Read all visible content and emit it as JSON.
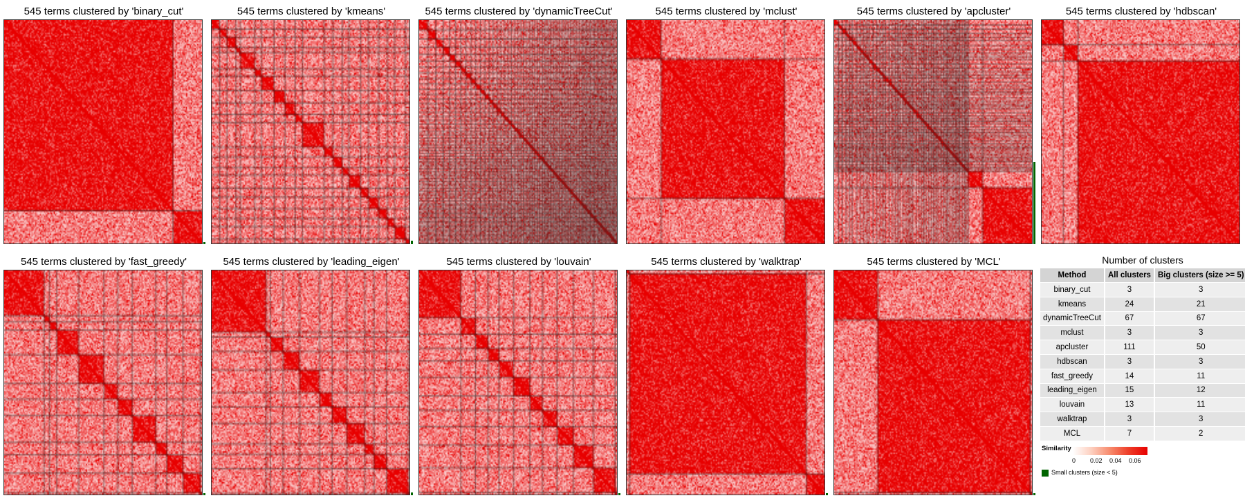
{
  "panel_title_suffix": "",
  "chart_data": [
    {
      "type": "heatmap",
      "title": "545 terms clustered by 'binary_cut'",
      "n_terms": 545,
      "method": "binary_cut",
      "cluster_sizes": [
        465,
        80
      ],
      "small_clusters": true,
      "small_size": 3
    },
    {
      "type": "heatmap",
      "title": "545 terms clustered by 'kmeans'",
      "n_terms": 545,
      "method": "kmeans",
      "cluster_sizes": [
        22,
        20,
        25,
        12,
        40,
        18,
        35,
        30,
        28,
        20,
        60,
        24,
        26,
        18,
        32,
        22,
        28,
        24,
        20,
        30,
        12,
        11,
        4,
        4
      ],
      "small_clusters": true,
      "small_size": 8
    },
    {
      "type": "heatmap",
      "title": "545 terms clustered by 'dynamicTreeCut'",
      "n_terms": 545,
      "method": "dynamicTreeCut",
      "cluster_sizes": [
        24,
        22,
        20,
        18,
        16,
        15,
        14,
        14,
        13,
        13,
        12,
        12,
        11,
        11,
        10,
        10,
        10,
        9,
        9,
        9,
        8,
        8,
        8,
        8,
        7,
        7,
        7,
        7,
        7,
        6,
        6,
        6,
        6,
        6,
        6,
        6,
        6,
        6,
        6,
        6,
        6,
        6,
        6,
        6,
        6,
        6,
        6,
        5,
        5,
        5,
        5,
        5,
        5,
        5,
        5,
        5,
        5,
        5,
        5,
        5,
        5,
        5,
        5,
        5,
        5,
        5,
        6
      ],
      "small_clusters": false,
      "small_size": 0
    },
    {
      "type": "heatmap",
      "title": "545 terms clustered by 'mclust'",
      "n_terms": 545,
      "method": "mclust",
      "cluster_sizes": [
        95,
        340,
        110
      ],
      "small_clusters": false,
      "small_size": 0
    },
    {
      "type": "heatmap",
      "title": "545 terms clustered by 'apcluster'",
      "n_terms": 545,
      "method": "apcluster",
      "cluster_sizes": [
        12,
        10,
        11,
        9,
        8,
        12,
        10,
        9,
        8,
        7,
        11,
        10,
        9,
        8,
        7,
        10,
        9,
        8,
        7,
        6,
        9,
        8,
        7,
        6,
        6,
        9,
        8,
        7,
        6,
        6,
        8,
        7,
        6,
        6,
        6,
        8,
        7,
        6,
        5,
        5,
        7,
        6,
        6,
        5,
        5,
        7,
        6,
        5,
        5,
        40,
        30
      ],
      "small_clusters": true,
      "small_size": 200
    },
    {
      "type": "heatmap",
      "title": "545 terms clustered by 'hdbscan'",
      "n_terms": 545,
      "method": "hdbscan",
      "cluster_sizes": [
        60,
        40,
        445
      ],
      "small_clusters": false,
      "small_size": 0
    },
    {
      "type": "heatmap",
      "title": "545 terms clustered by 'fast_greedy'",
      "n_terms": 545,
      "method": "fast_greedy",
      "cluster_sizes": [
        110,
        15,
        20,
        60,
        70,
        38,
        40,
        65,
        30,
        45,
        48,
        4
      ],
      "small_clusters": true,
      "small_size": 4
    },
    {
      "type": "heatmap",
      "title": "545 terms clustered by 'leading_eigen'",
      "n_terms": 545,
      "method": "leading_eigen",
      "cluster_sizes": [
        150,
        12,
        35,
        45,
        55,
        35,
        40,
        50,
        25,
        35,
        60,
        3
      ],
      "small_clusters": true,
      "small_size": 6
    },
    {
      "type": "heatmap",
      "title": "545 terms clustered by 'louvain'",
      "n_terms": 545,
      "method": "louvain",
      "cluster_sizes": [
        115,
        40,
        35,
        30,
        40,
        45,
        35,
        40,
        45,
        55,
        60,
        5
      ],
      "small_clusters": true,
      "small_size": 5
    },
    {
      "type": "heatmap",
      "title": "545 terms clustered by 'walktrap'",
      "n_terms": 545,
      "method": "walktrap",
      "cluster_sizes": [
        8,
        487,
        50
      ],
      "small_clusters": true,
      "small_size": 3
    },
    {
      "type": "heatmap",
      "title": "545 terms clustered by 'MCL'",
      "n_terms": 545,
      "method": "MCL",
      "cluster_sizes": [
        120,
        420,
        5
      ],
      "small_clusters": true,
      "small_size": 5
    }
  ],
  "table": {
    "title": "Number of clusters",
    "headers": [
      "Method",
      "All clusters",
      "Big clusters (size >= 5)"
    ],
    "rows": [
      [
        "binary_cut",
        "3",
        "3"
      ],
      [
        "kmeans",
        "24",
        "21"
      ],
      [
        "dynamicTreeCut",
        "67",
        "67"
      ],
      [
        "mclust",
        "3",
        "3"
      ],
      [
        "apcluster",
        "111",
        "50"
      ],
      [
        "hdbscan",
        "3",
        "3"
      ],
      [
        "fast_greedy",
        "14",
        "11"
      ],
      [
        "leading_eigen",
        "15",
        "12"
      ],
      [
        "louvain",
        "13",
        "11"
      ],
      [
        "walktrap",
        "3",
        "3"
      ],
      [
        "MCL",
        "7",
        "2"
      ]
    ]
  },
  "legend": {
    "title": "Similarity",
    "ticks": [
      "0",
      "0.02",
      "0.04",
      "0.06"
    ],
    "colors": [
      "#ffffff",
      "#e80000"
    ],
    "small_clusters_label": "Small clusters (size < 5)",
    "small_clusters_color": "#006400"
  }
}
